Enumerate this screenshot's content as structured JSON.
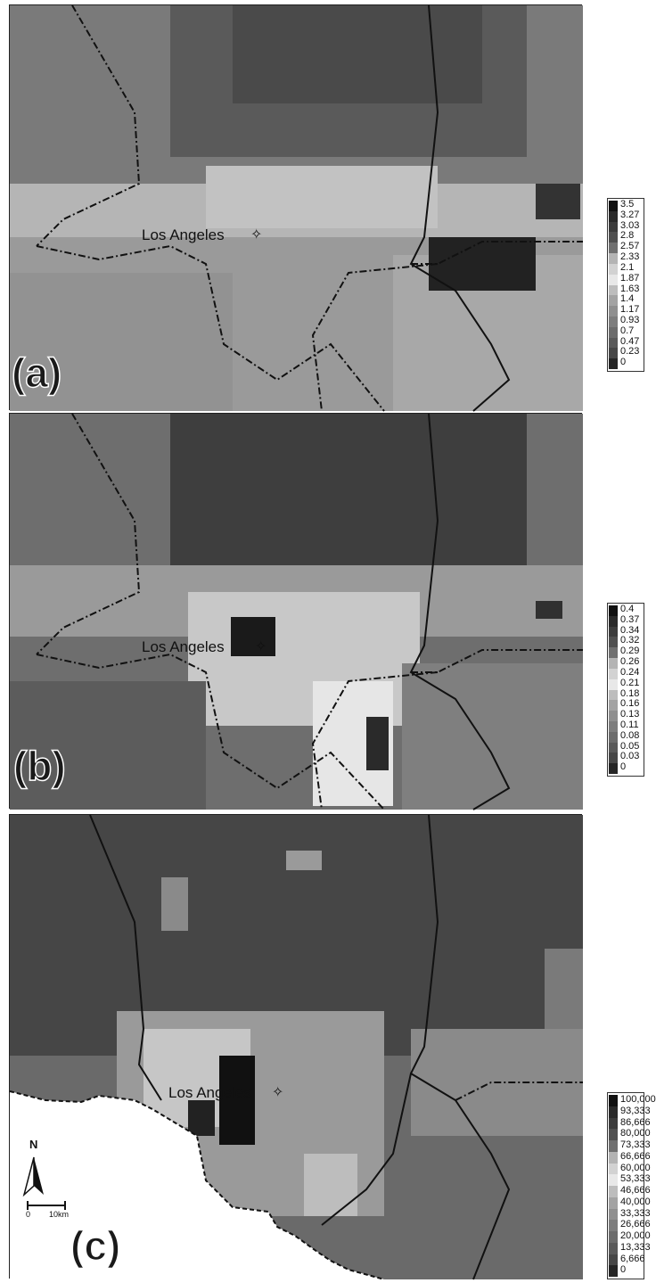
{
  "panels": [
    {
      "id": "a",
      "label": "(a)",
      "city": "Los Angeles",
      "legend_values": [
        "3.5",
        "3.27",
        "3.03",
        "2.8",
        "2.57",
        "2.33",
        "2.1",
        "1.87",
        "1.63",
        "1.4",
        "1.17",
        "0.93",
        "0.7",
        "0.47",
        "0.23",
        "0"
      ]
    },
    {
      "id": "b",
      "label": "(b)",
      "city": "Los Angeles",
      "legend_values": [
        "0.4",
        "0.37",
        "0.34",
        "0.32",
        "0.29",
        "0.26",
        "0.24",
        "0.21",
        "0.18",
        "0.16",
        "0.13",
        "0.11",
        "0.08",
        "0.05",
        "0.03",
        "0"
      ]
    },
    {
      "id": "c",
      "label": "(c)",
      "city": "Los Angeles",
      "legend_values": [
        "100,000",
        "93,333",
        "86,666",
        "80,000",
        "73,333",
        "66,666",
        "60,000",
        "53,333",
        "46,666",
        "40,000",
        "33,333",
        "26,666",
        "20,000",
        "13,333",
        "6,666",
        "0"
      ],
      "north_label": "N",
      "scale_start": "0",
      "scale_end": "10km"
    }
  ],
  "legend_colors": [
    "#111111",
    "#2a2a2a",
    "#3c3c3c",
    "#505050",
    "#707070",
    "#b4b4b4",
    "#d2d2d2",
    "#e8e8e8",
    "#bdbdbd",
    "#a3a3a3",
    "#8f8f8f",
    "#7d7d7d",
    "#6c6c6c",
    "#5a5a5a",
    "#474747",
    "#262626"
  ]
}
